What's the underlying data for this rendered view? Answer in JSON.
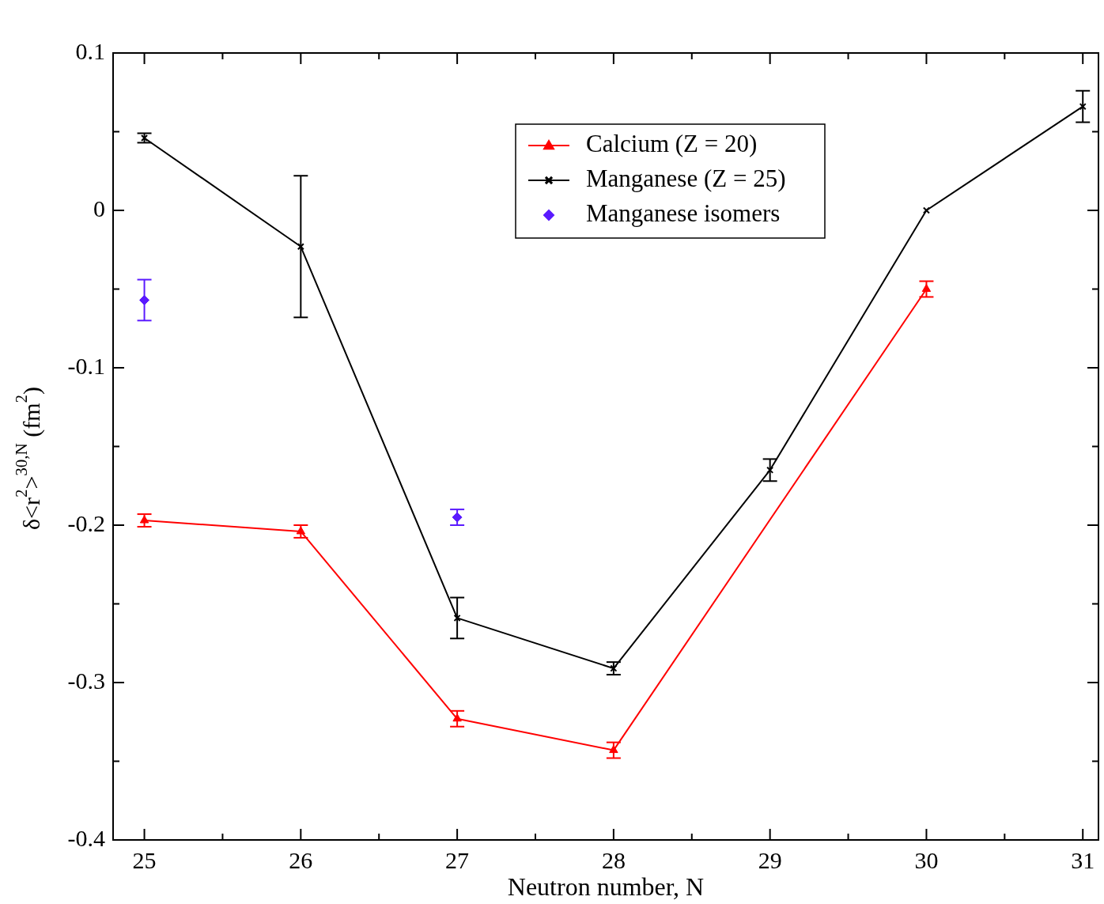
{
  "chart_data": {
    "type": "line",
    "xlabel": "Neutron number, N",
    "ylabel": "δ<r$^{2}$>$^{30,N}$ (fm$^{2}$)",
    "xlim": [
      24.8,
      31.1
    ],
    "xticks": [
      25,
      {
        "value": 25.5,
        "label": null
      },
      26,
      {
        "value": 26.5,
        "label": null
      },
      27,
      {
        "value": 27.5,
        "label": null
      },
      28,
      {
        "value": 28.5,
        "label": null
      },
      29,
      {
        "value": 29.5,
        "label": null
      },
      30,
      {
        "value": 30.5,
        "label": null
      },
      31
    ],
    "ylim": [
      -0.4,
      0.1
    ],
    "yticks": [
      -0.4,
      {
        "value": -0.35,
        "label": null
      },
      -0.3,
      {
        "value": -0.25,
        "label": null
      },
      -0.2,
      {
        "value": -0.15,
        "label": null
      },
      -0.1,
      {
        "value": -0.05,
        "label": null
      },
      0,
      {
        "value": 0.05,
        "label": null
      },
      0.1
    ],
    "grid": false,
    "legend": "top right",
    "series": [
      {
        "name": "Calcium (Z = 20)",
        "color": "#ff0000",
        "marker": "triangle",
        "x": [
          25,
          26,
          27,
          28,
          30
        ],
        "values": [
          -0.197,
          -0.204,
          -0.323,
          -0.343,
          -0.05
        ],
        "errors": [
          0.004,
          0.004,
          0.005,
          0.005,
          0.005
        ]
      },
      {
        "name": "Manganese (Z = 25)",
        "color": "#000000",
        "marker": "cross",
        "x": [
          25,
          26,
          27,
          28,
          29,
          30,
          31
        ],
        "values": [
          0.046,
          -0.023,
          -0.259,
          -0.291,
          -0.165,
          0,
          0.066
        ],
        "errors": [
          0.003,
          0.045,
          0.013,
          0.004,
          0.007,
          null,
          0.01
        ]
      },
      {
        "name": "Manganese isomers",
        "type": "scatter",
        "color": "#5a1aff",
        "marker": "diamond",
        "x": [
          25,
          27
        ],
        "values": [
          -0.057,
          -0.195
        ],
        "errors": [
          0.013,
          0.005
        ]
      }
    ]
  }
}
